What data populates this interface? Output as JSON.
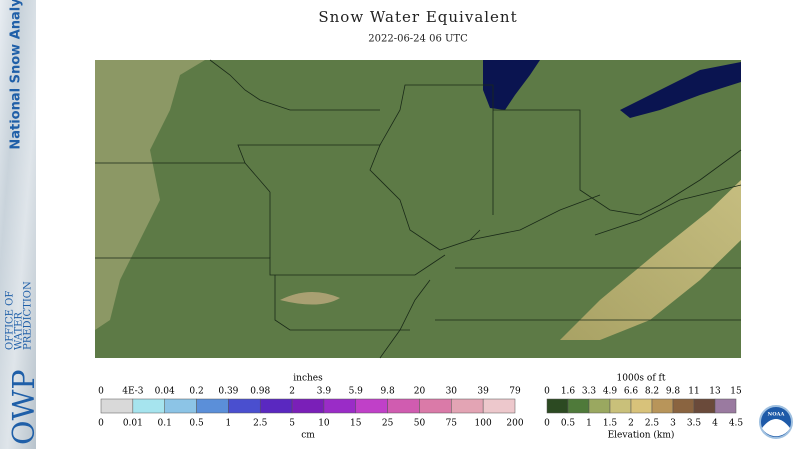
{
  "header": {
    "title": "Snow Water Equivalent",
    "subtitle": "2022-06-24 06 UTC"
  },
  "sidebar": {
    "product": "National Snow Analysis",
    "logo": "OWP",
    "office": [
      "OFFICE OF",
      "WATER",
      "PREDICTION"
    ]
  },
  "swe_legend": {
    "top_unit": "inches",
    "top_labels": [
      "0",
      "4E-3",
      "0.04",
      "0.2",
      "0.39",
      "0.98",
      "2",
      "3.9",
      "5.9",
      "9.8",
      "20",
      "30",
      "39",
      "79"
    ],
    "bottom_labels": [
      "0",
      "0.01",
      "0.1",
      "0.5",
      "1",
      "2.5",
      "5",
      "10",
      "15",
      "25",
      "50",
      "75",
      "100",
      "200"
    ],
    "bottom_unit": "cm"
  },
  "elevation_legend": {
    "top_unit": "1000s of ft",
    "top_labels": [
      "0",
      "1.6",
      "3.3",
      "4.9",
      "6.6",
      "8.2",
      "9.8",
      "11",
      "13",
      "15"
    ],
    "bottom_labels": [
      "0",
      "0.5",
      "1",
      "1.5",
      "2",
      "2.5",
      "3",
      "3.5",
      "4",
      "4.5"
    ],
    "bottom_unit": "Elevation (km)"
  },
  "badge": "NOAA"
}
